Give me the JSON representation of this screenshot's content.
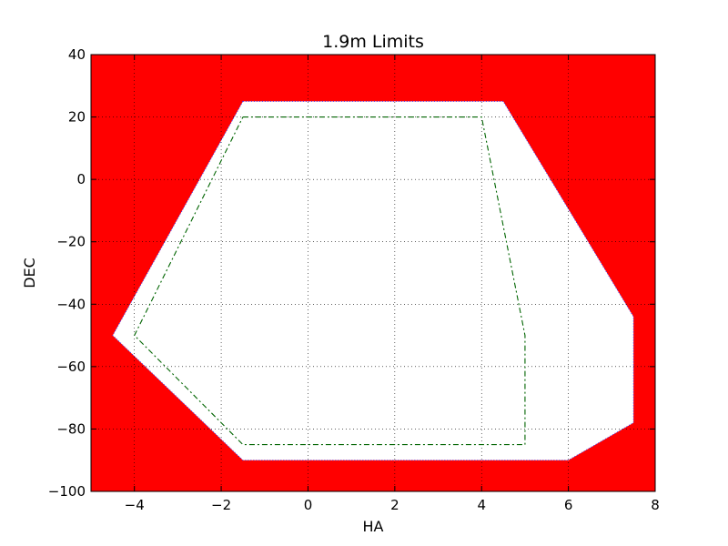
{
  "chart_data": {
    "type": "area",
    "title": "1.9m Limits",
    "xlabel": "HA",
    "ylabel": "DEC",
    "xlim": [
      -5,
      8
    ],
    "ylim": [
      -100,
      40
    ],
    "xticks": [
      "−4",
      "−2",
      "0",
      "2",
      "4",
      "6",
      "8"
    ],
    "xtick_values": [
      -4,
      -2,
      0,
      2,
      4,
      6,
      8
    ],
    "yticks": [
      "−100",
      "−80",
      "−60",
      "−40",
      "−20",
      "0",
      "20",
      "40"
    ],
    "ytick_values": [
      -100,
      -80,
      -60,
      -40,
      -20,
      0,
      20,
      40
    ],
    "grid": true,
    "background_color": "#ff0000",
    "allowed_region": {
      "color": "#ffffff",
      "points": [
        [
          -1.5,
          25
        ],
        [
          4.5,
          25
        ],
        [
          7.5,
          -44
        ],
        [
          7.5,
          -78
        ],
        [
          6,
          -90
        ],
        [
          -1.5,
          -90
        ],
        [
          -4.5,
          -50
        ]
      ]
    },
    "dashed_limit": {
      "color": "#006400",
      "points": [
        [
          -1.5,
          20
        ],
        [
          4.0,
          20
        ],
        [
          5.0,
          -50
        ],
        [
          5.0,
          -85
        ],
        [
          -1.5,
          -85
        ],
        [
          -4.0,
          -50
        ]
      ]
    }
  }
}
